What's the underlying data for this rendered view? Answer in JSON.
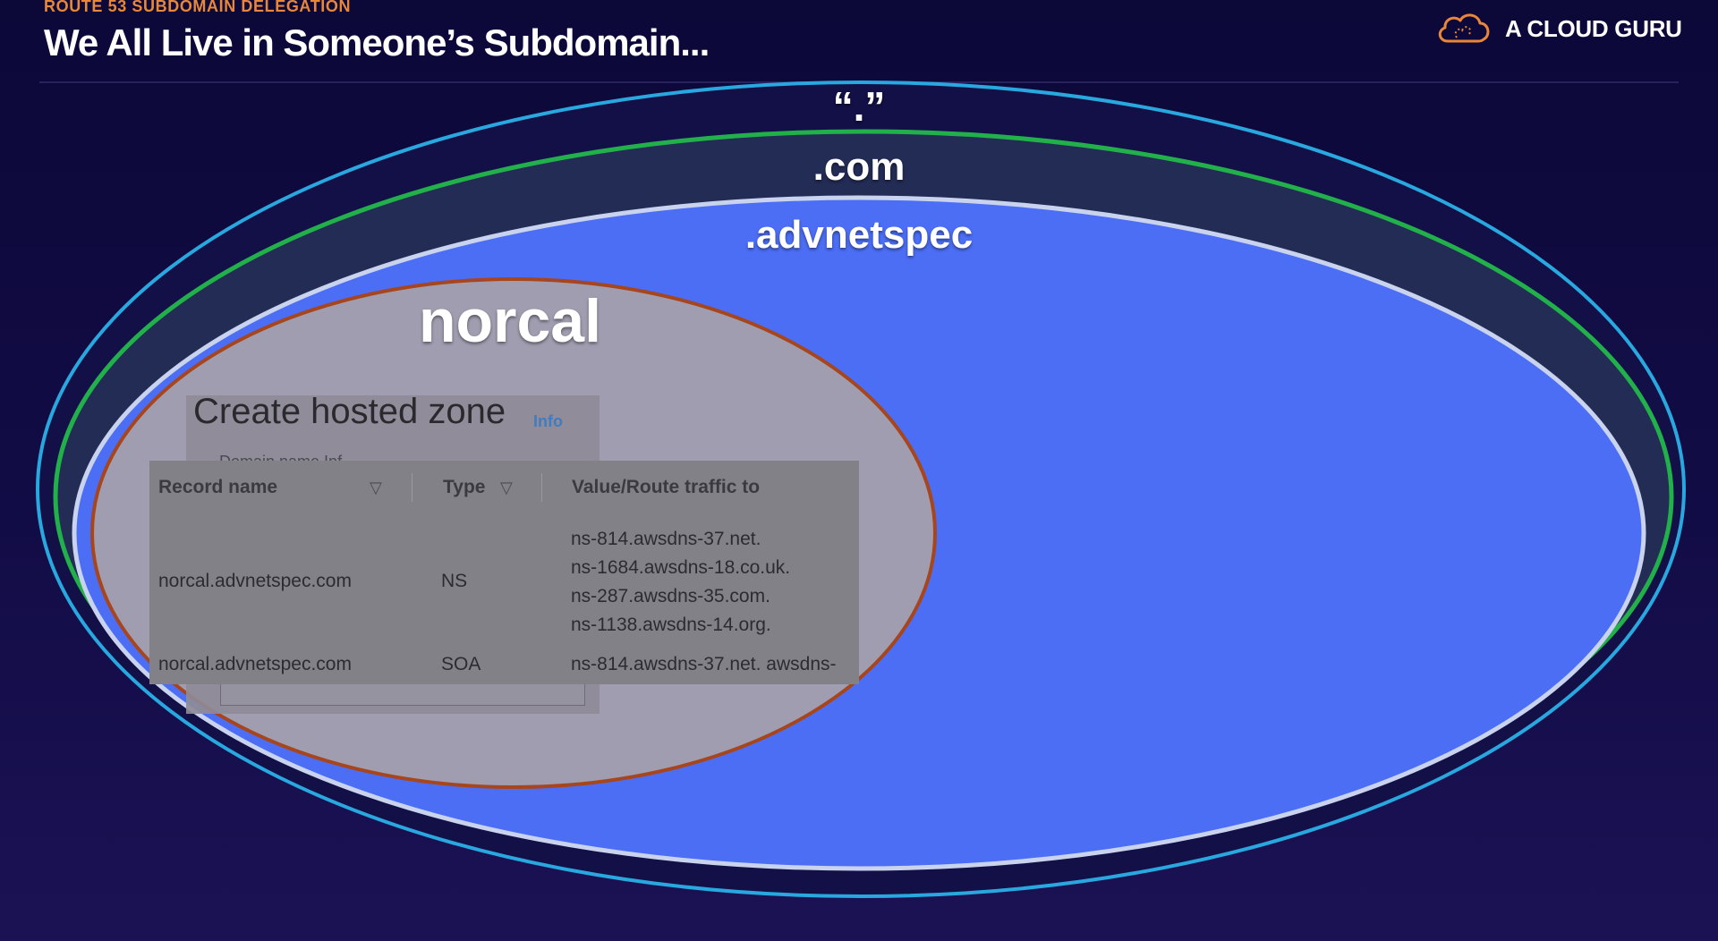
{
  "header": {
    "eyebrow": "ROUTE 53 SUBDOMAIN DELEGATION",
    "title": "We All Live in Someone’s Subdomain..."
  },
  "brand": {
    "name": "A CLOUD GURU",
    "icon": "cloud-logo-icon",
    "color": "#e8873a"
  },
  "zones": {
    "root": {
      "label": "“.”",
      "color": "#29a8e0"
    },
    "com": {
      "label": ".com",
      "color": "#22b04b"
    },
    "advnetspec": {
      "label": ".advnetspec",
      "color": "#c9d3ee",
      "fill": "#4c6ef5"
    },
    "norcal": {
      "label": "norcal",
      "color": "#a7461c",
      "fill": "#a09db0"
    }
  },
  "console": {
    "title": "Create hosted zone",
    "info_link": "Info",
    "field_label_cut": "Domain name  Inf"
  },
  "records_table": {
    "columns": [
      "Record name",
      "Type",
      "Value/Route traffic to"
    ],
    "rows": [
      {
        "name": "norcal.advnetspec.com",
        "type": "NS",
        "values": [
          "ns-814.awsdns-37.net.",
          "ns-1684.awsdns-18.co.uk.",
          "ns-287.awsdns-35.com.",
          "ns-1138.awsdns-14.org."
        ]
      },
      {
        "name": "norcal.advnetspec.com",
        "type": "SOA",
        "values": [
          "ns-814.awsdns-37.net. awsdns-"
        ]
      }
    ]
  }
}
